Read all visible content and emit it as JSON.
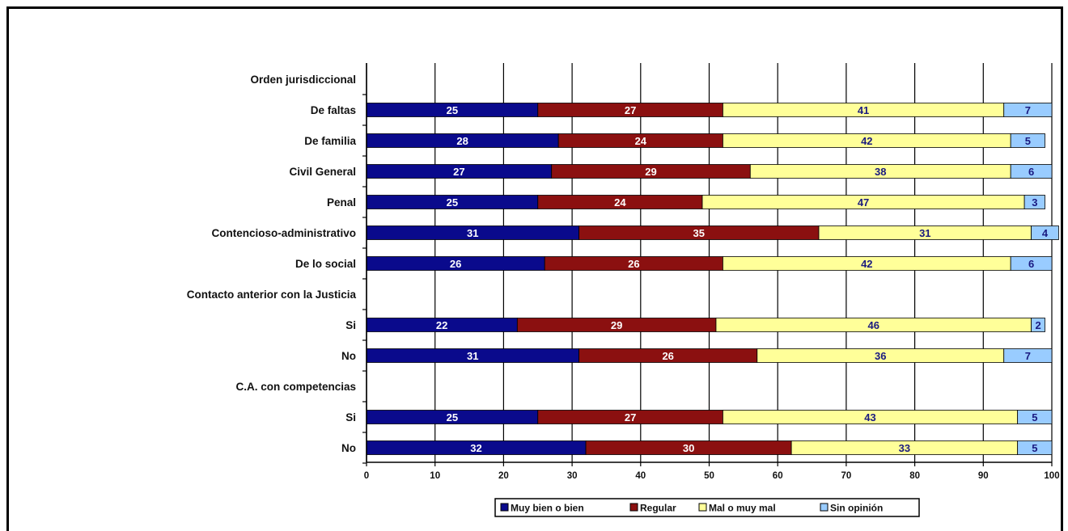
{
  "chart_data": {
    "type": "bar",
    "orientation": "horizontal",
    "stacked": true,
    "categories": [
      "Orden jurisdiccional",
      "De faltas",
      "De familia",
      "Civil General",
      "Penal",
      "Contencioso-administrativo",
      "De lo social",
      "Contacto anterior con la Justicia",
      "Si",
      "No",
      "C.A. con competencias",
      "Si",
      "No"
    ],
    "series": [
      {
        "name": "Muy bien o bien",
        "color": "#0a0a8c",
        "label_color": "#ffffff",
        "values": [
          null,
          25,
          28,
          27,
          25,
          31,
          26,
          null,
          22,
          31,
          null,
          25,
          32
        ]
      },
      {
        "name": "Regular",
        "color": "#8b1010",
        "label_color": "#ffffff",
        "values": [
          null,
          27,
          24,
          29,
          24,
          35,
          26,
          null,
          29,
          26,
          null,
          27,
          30
        ]
      },
      {
        "name": "Mal o muy mal",
        "color": "#ffff99",
        "label_color": "#1a1a80",
        "values": [
          null,
          41,
          42,
          38,
          47,
          31,
          42,
          null,
          46,
          36,
          null,
          43,
          33
        ]
      },
      {
        "name": "Sin opinión",
        "color": "#99ccff",
        "label_color": "#1a1a80",
        "values": [
          null,
          7,
          5,
          6,
          3,
          4,
          6,
          null,
          2,
          7,
          null,
          5,
          5
        ]
      }
    ],
    "xlim": [
      0,
      100
    ],
    "xticks": [
      0,
      10,
      20,
      30,
      40,
      50,
      60,
      70,
      80,
      90,
      100
    ],
    "grid": "vertical",
    "legend": "bottom"
  },
  "legend_items": [
    "Muy bien o bien",
    "Regular",
    "Mal o muy mal",
    "Sin opinión"
  ]
}
